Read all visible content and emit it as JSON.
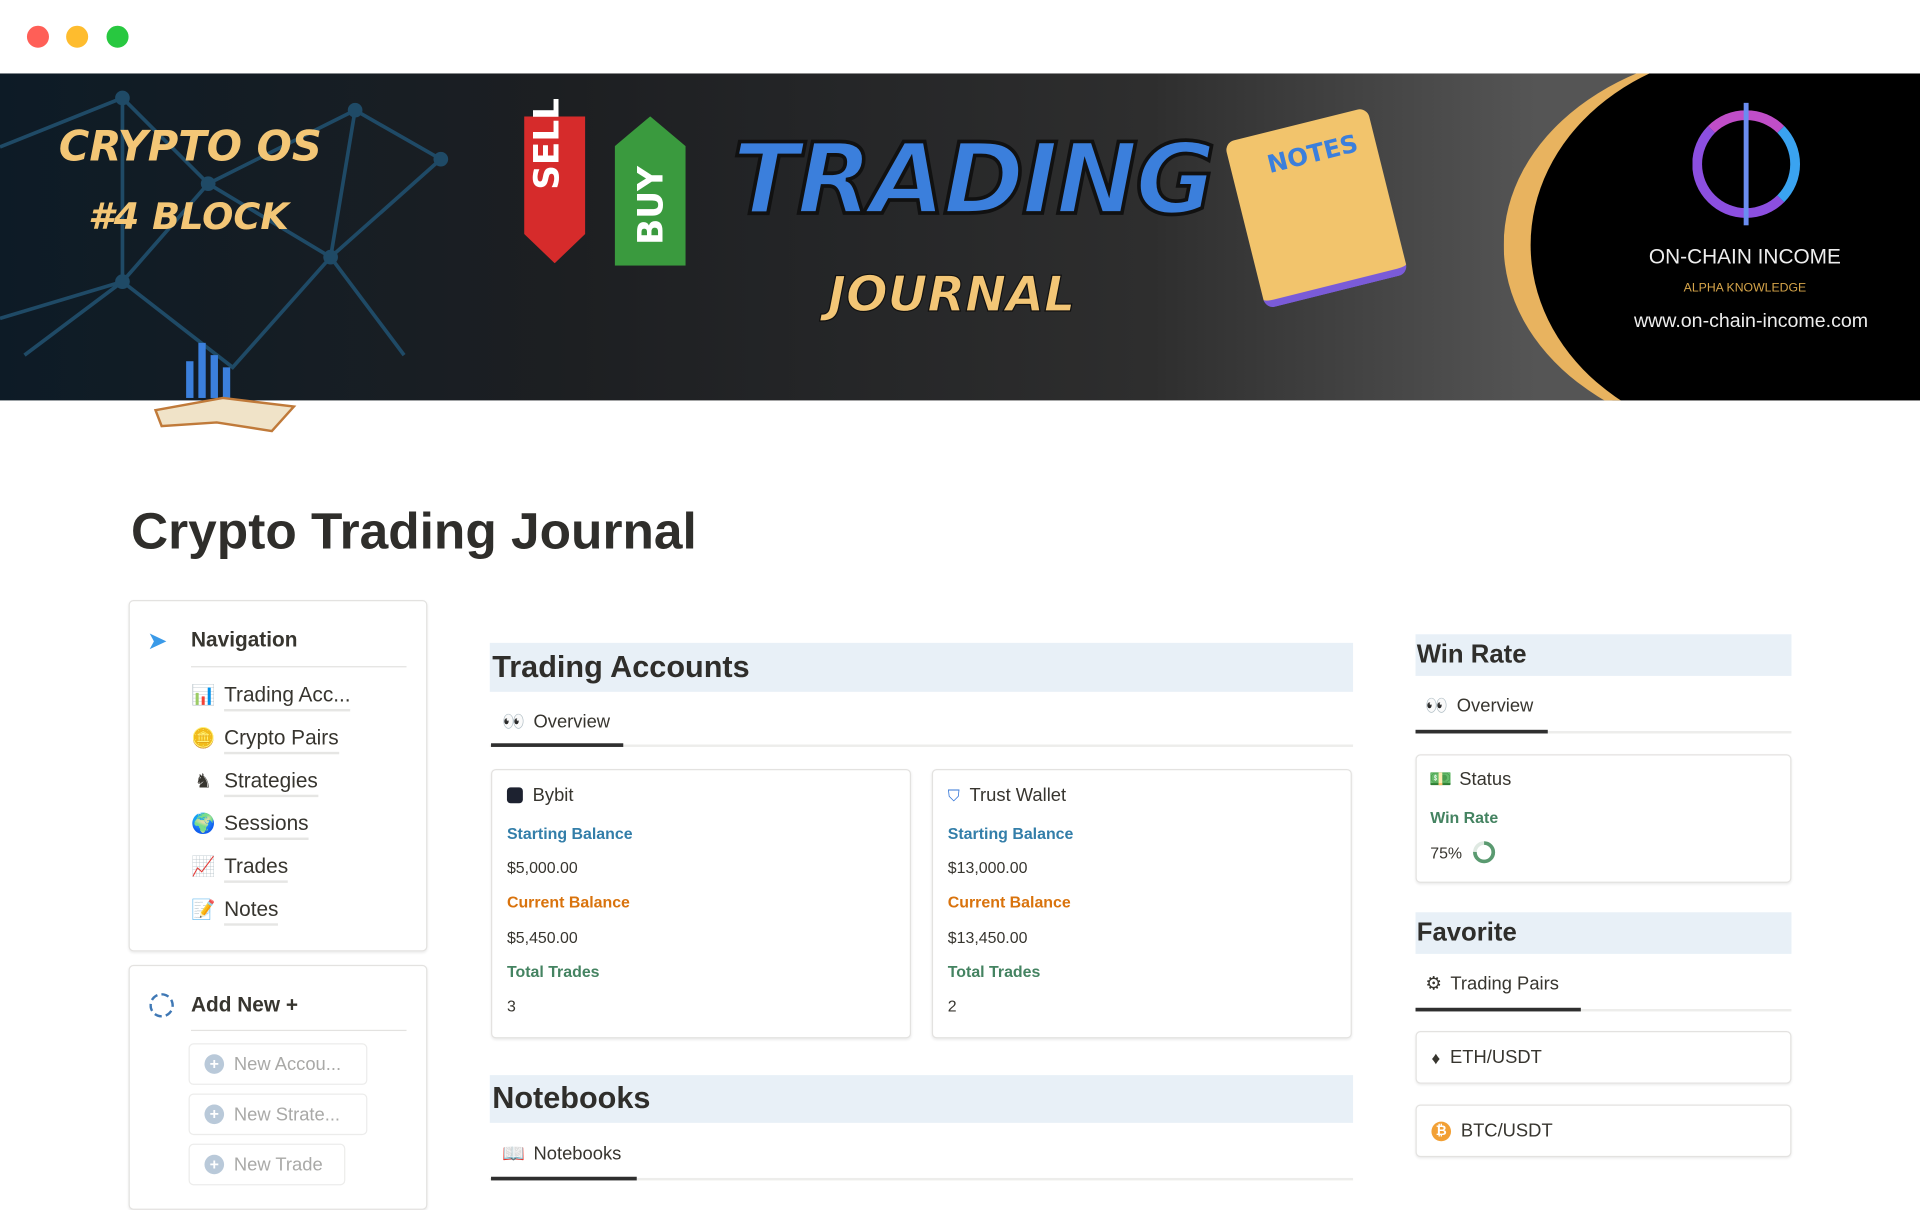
{
  "window": {
    "controls": [
      "close",
      "minimize",
      "maximize"
    ],
    "colors": {
      "close": "#ff5f57",
      "minimize": "#febc2e",
      "maximize": "#28c840"
    }
  },
  "banner": {
    "brand_line1": "CRYPTO OS",
    "brand_line2": "#4 BLOCK",
    "sell": "SELL",
    "buy": "BUY",
    "title": "TRADING",
    "subtitle": "JOURNAL",
    "notes": "NOTES",
    "logo_name": "ON-CHAIN INCOME",
    "logo_tagline": "ALPHA KNOWLEDGE",
    "logo_url": "www.on-chain-income.com"
  },
  "page": {
    "title": "Crypto Trading Journal"
  },
  "navigation": {
    "heading": "Navigation",
    "icon": "paper-plane-icon",
    "items": [
      {
        "label": "Trading Acc...",
        "icon": "calculator-chart-icon"
      },
      {
        "label": "Crypto Pairs",
        "icon": "coins-icon"
      },
      {
        "label": "Strategies",
        "icon": "chess-knight-icon"
      },
      {
        "label": "Sessions",
        "icon": "globe-icon"
      },
      {
        "label": "Trades",
        "icon": "chart-up-icon"
      },
      {
        "label": "Notes",
        "icon": "sticky-note-icon"
      }
    ]
  },
  "add_new": {
    "heading": "Add New +",
    "buttons": [
      "New Accou...",
      "New Strate...",
      "New Trade"
    ]
  },
  "trading_accounts": {
    "heading": "Trading Accounts",
    "tab": "Overview",
    "fields": {
      "starting": "Starting Balance",
      "current": "Current Balance",
      "trades": "Total Trades"
    },
    "accounts": [
      {
        "name": "Bybit",
        "icon": "bybit-icon",
        "starting": "$5,000.00",
        "current": "$5,450.00",
        "trades": "3"
      },
      {
        "name": "Trust Wallet",
        "icon": "shield-icon",
        "starting": "$13,000.00",
        "current": "$13,450.00",
        "trades": "2"
      }
    ],
    "colors": {
      "starting": "#337ea9",
      "current": "#d9730d",
      "trades": "#448361"
    }
  },
  "notebooks": {
    "heading": "Notebooks",
    "tab": "Notebooks"
  },
  "win_rate": {
    "heading": "Win Rate",
    "tab": "Overview",
    "card_title": "Status",
    "label": "Win Rate",
    "value": "75%",
    "fraction": 0.75
  },
  "favorite": {
    "heading": "Favorite",
    "tab": "Trading Pairs",
    "pairs": [
      {
        "label": "ETH/USDT",
        "icon": "ethereum-icon"
      },
      {
        "label": "BTC/USDT",
        "icon": "bitcoin-icon"
      }
    ]
  }
}
